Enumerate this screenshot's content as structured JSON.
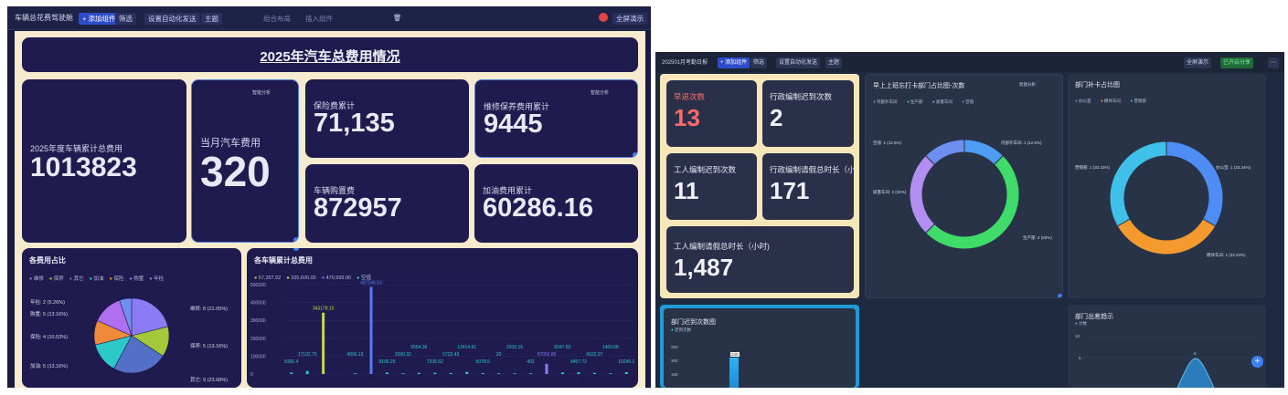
{
  "left": {
    "toolbar": {
      "title": "车辆总花费驾驶舱",
      "add": "+ 添加组件",
      "filter": "筛选",
      "auto": "设置自动化发送",
      "theme": "主题",
      "group": "组合布局",
      "insert": "插入组件",
      "fullscreen": "全屏演示"
    },
    "banner": "2025年汽车总费用情况",
    "kpis": {
      "total_label": "2025年度车辆累计总费用",
      "total_value": "1013823",
      "month_label": "当月汽车费用",
      "month_value": "320",
      "insurance_label": "保险费累计",
      "insurance_value": "71,135",
      "maint_label": "维修保养费用累计",
      "maint_value": "9445",
      "purchase_label": "车辆购置费",
      "purchase_value": "872957",
      "fuel_label": "加油费用累计",
      "fuel_value": "60286.16",
      "smart": "智能分析"
    },
    "pie": {
      "title": "各费用占比",
      "legend": [
        "维修",
        "保养",
        "其它",
        "加油",
        "保险",
        "购置",
        "年检"
      ],
      "labels_left": [
        "年检: 2 (5.26%)",
        "购置: 5 (13.16%)",
        "保险: 4 (10.53%)",
        "加油: 5 (13.16%)"
      ],
      "labels_right": [
        "维修: 8 (21.05%)",
        "保养: 5 (13.16%)",
        "其它: 9 (23.68%)"
      ]
    },
    "bar": {
      "title": "各车辆累计总费用",
      "legend": [
        "57,357.52",
        "335,600.00",
        "479,999.00",
        "空值"
      ],
      "yticks": [
        "500000",
        "400000",
        "300000",
        "200000",
        "100000",
        "0"
      ]
    }
  },
  "chart_data": {
    "type": "pie",
    "title": "各费用占比",
    "categories": [
      "维修",
      "保养",
      "其它",
      "加油",
      "保险",
      "购置",
      "年检"
    ],
    "values": [
      8,
      5,
      9,
      5,
      4,
      5,
      2
    ],
    "colors": [
      "#8b7cf6",
      "#a3c93a",
      "#5470c6",
      "#2dc9c9",
      "#f08a3a",
      "#b06ff0",
      "#6f8ff0"
    ]
  },
  "bar_chart": {
    "type": "bar",
    "title": "各车辆累计总费用",
    "ylim": [
      0,
      500000
    ],
    "values": [
      8306.4,
      17102.75,
      343178.15,
      0,
      4096.19,
      487246.53,
      8106.25,
      2090.32,
      6554.36,
      7335.62,
      5733.43,
      12414.61,
      5078.5,
      20,
      2910.16,
      402,
      57092.85,
      8347.82,
      9457.72,
      6622.97,
      1469.68,
      10245.1
    ],
    "labels": [
      "8306.4",
      "17102.75",
      "343178.15",
      "",
      "4096.19",
      "487246.53",
      "8106.25",
      "2090.32",
      "6554.36",
      "7335.62",
      "5733.43",
      "12414.61",
      "5078.5",
      "20",
      "2910.16",
      "402",
      "57092.85",
      "8347.82",
      "9457.72",
      "6622.97",
      "1469.68",
      "10245.1"
    ]
  },
  "right": {
    "toolbar": {
      "title": "202501月考勤日报",
      "add": "+ 添加组件",
      "filter": "筛选",
      "auto": "设置自动化发送",
      "theme": "主题",
      "fullscreen": "全屏演示",
      "share": "已开启分享"
    },
    "kpis": [
      {
        "label": "早退次数",
        "value": "13"
      },
      {
        "label": "行政编制迟到次数",
        "value": "2"
      },
      {
        "label": "工人编制迟到次数",
        "value": "11"
      },
      {
        "label": "行政编制请假总时长（小...",
        "value": "171"
      },
      {
        "label": "工人编制请假总时长（小时)",
        "value": "1,487"
      }
    ],
    "donut1": {
      "title": "早上上班忘打卡部门占比图-次数",
      "legend": [
        "内部外车间",
        "生产部",
        "质量车间",
        "空值"
      ],
      "labels": [
        "内部外车间: 1 (12.5%)",
        "生产部: 4 (50%)",
        "质量车间: 2 (25%)",
        "空值: 1 (12.5%)"
      ],
      "smart": "智能分析"
    },
    "donut2": {
      "title": "部门补卡占比图",
      "legend": [
        "办公室",
        "模体车间",
        "营销部"
      ],
      "labels": [
        "办公室: 1 (33.34%)",
        "模体车间: 1 (33.33%)",
        "营销部: 1 (33.33%)"
      ]
    },
    "late": {
      "title": "部门迟到次数图",
      "legend": "迟到次数",
      "yticks": [
        "250",
        "200",
        "150"
      ],
      "bar_label": "240"
    },
    "trend": {
      "title": "部门出差趋示",
      "legend": "计数",
      "yticks": [
        "10",
        "5"
      ],
      "point_label": "6"
    }
  }
}
